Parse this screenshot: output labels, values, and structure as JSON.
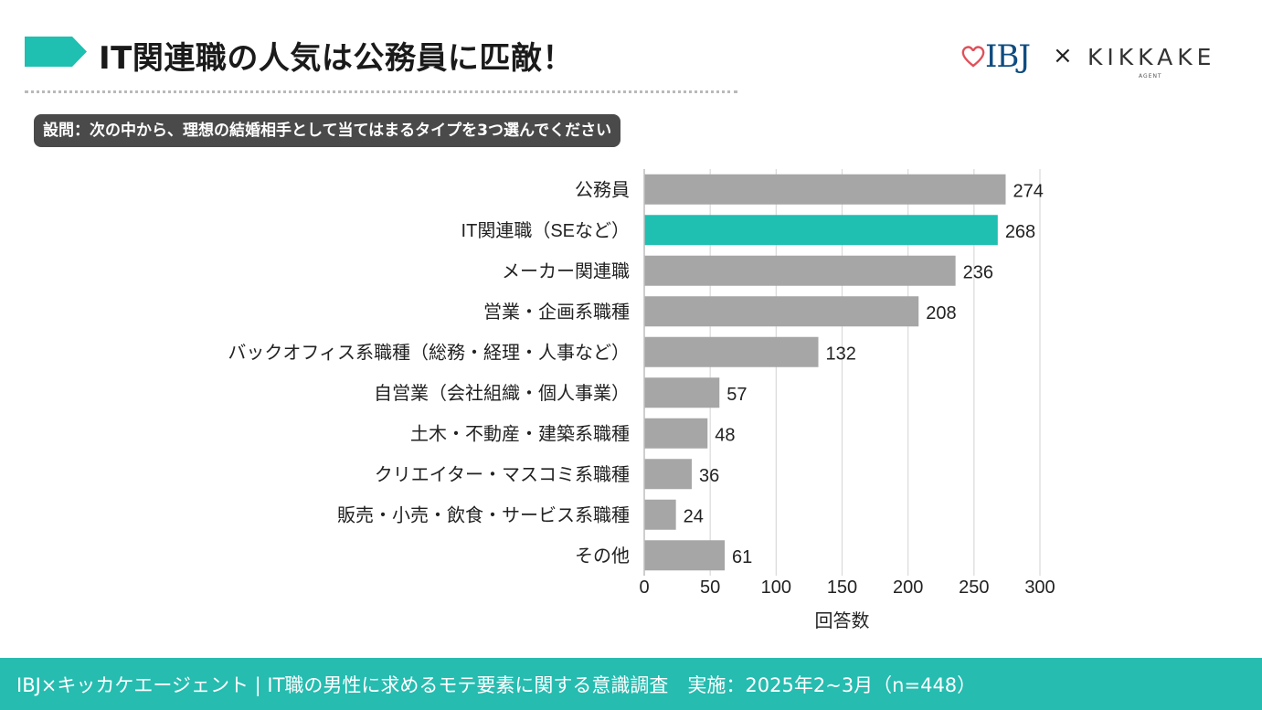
{
  "header": {
    "title": "IT関連職の人気は公務員に匹敵！",
    "logo_ibj": "IBJ",
    "logo_times": "×",
    "logo_kikkake": "KIKKAKE",
    "logo_agent": "AGENT"
  },
  "question": "設問：次の中から、理想の結婚相手として当てはまるタイプを3つ選んでください",
  "colors": {
    "accent": "#1fbfb1",
    "bar": "#a6a6a6",
    "grid": "#d9d9d9",
    "footer": "#26bcb0",
    "question_bg": "#4a4a4a",
    "logo_heart": "#e0505a",
    "logo_ibj": "#0f4c81"
  },
  "chart_data": {
    "type": "bar",
    "orientation": "horizontal",
    "categories": [
      "公務員",
      "IT関連職（SEなど）",
      "メーカー関連職",
      "営業・企画系職種",
      "バックオフィス系職種（総務・経理・人事など）",
      "自営業（会社組織・個人事業）",
      "土木・不動産・建築系職種",
      "クリエイター・マスコミ系職種",
      "販売・小売・飲食・サービス系職種",
      "その他"
    ],
    "values": [
      274,
      268,
      236,
      208,
      132,
      57,
      48,
      36,
      24,
      61
    ],
    "highlight_index": 1,
    "xlabel": "回答数",
    "ylabel": "",
    "xlim": [
      0,
      300
    ],
    "xticks": [
      0,
      50,
      100,
      150,
      200,
      250,
      300
    ],
    "grid": true
  },
  "footer": {
    "text": "IBJ×キッカケエージェント | IT職の男性に求めるモテ要素に関する意識調査　実施：2025年2~3月（n=448）"
  }
}
